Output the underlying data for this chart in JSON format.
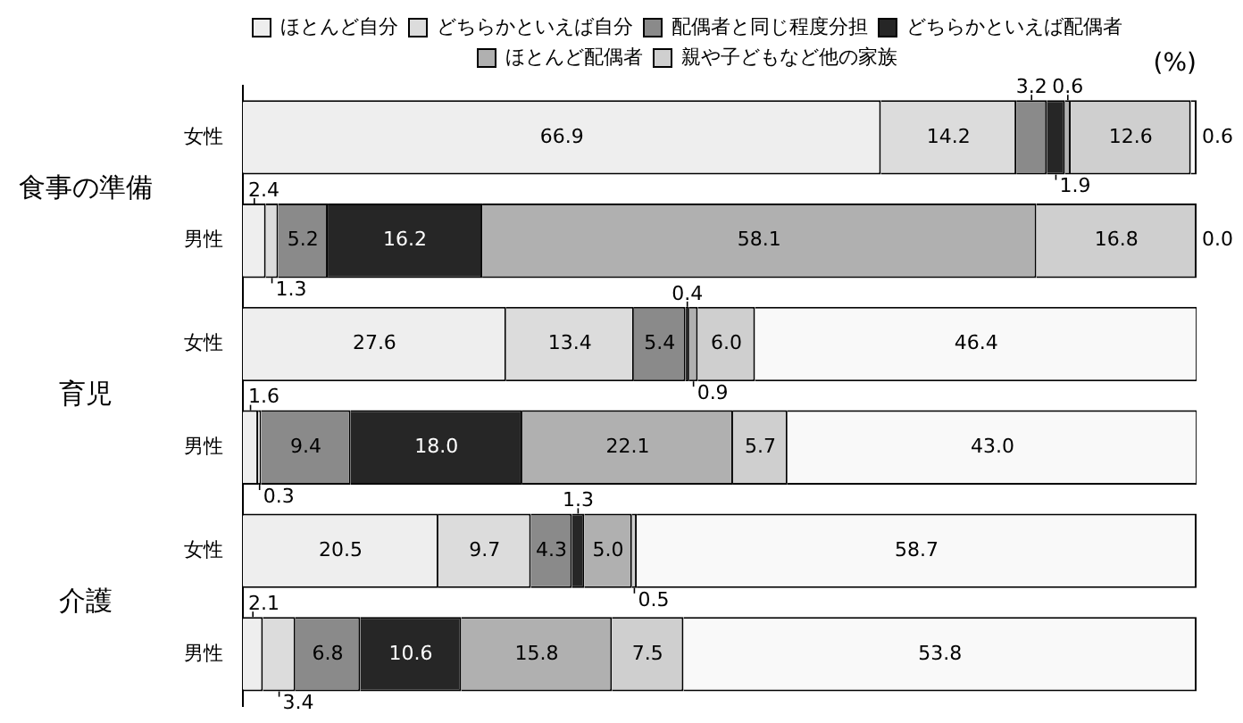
{
  "chart_data": {
    "type": "bar",
    "orientation": "horizontal",
    "stacked": true,
    "categories": [
      "女性",
      "男性",
      "女性",
      "男性",
      "女性",
      "男性"
    ],
    "series": [
      {
        "name": "ほとんど自分",
        "color": "#eeeeee",
        "values": [
          66.9,
          2.4,
          27.6,
          1.6,
          20.5,
          2.1
        ],
        "value_labels": [
          "66.9",
          "2.4",
          "27.6",
          "1.6",
          "20.5",
          "2.1"
        ]
      },
      {
        "name": "どちらかといえば自分",
        "color": "#dcdcdc",
        "values": [
          14.2,
          1.3,
          13.4,
          0.3,
          9.7,
          3.4
        ],
        "value_labels": [
          "14.2",
          "1.3",
          "13.4",
          "0.3",
          "9.7",
          "3.4"
        ]
      },
      {
        "name": "配偶者と同じ程度分担",
        "color": "#8a8a8a",
        "values": [
          3.2,
          5.2,
          5.4,
          9.4,
          4.3,
          6.8
        ],
        "value_labels": [
          "3.2",
          "5.2",
          "5.4",
          "9.4",
          "4.3",
          "6.8"
        ]
      },
      {
        "name": "どちらかといえば配偶者",
        "color": "#262626",
        "values": [
          1.9,
          16.2,
          0.4,
          18.0,
          1.3,
          10.6
        ],
        "value_labels": [
          "1.9",
          "16.2",
          "0.4",
          "18.0",
          "1.3",
          "10.6"
        ]
      },
      {
        "name": "ほとんど配偶者",
        "color": "#b0b0b0",
        "values": [
          0.6,
          58.1,
          0.9,
          22.1,
          5.0,
          15.8
        ],
        "value_labels": [
          "0.6",
          "58.1",
          "0.9",
          "22.1",
          "5.0",
          "15.8"
        ]
      },
      {
        "name": "親や子どもなど他の家族",
        "color": "#cfcfcf",
        "values": [
          12.6,
          16.8,
          6.0,
          5.7,
          0.5,
          7.5
        ],
        "value_labels": [
          "12.6",
          "16.8",
          "6.0",
          "5.7",
          "0.5",
          "7.5"
        ]
      },
      {
        "color": "#f9f9f9",
        "values": [
          0.6,
          0.0,
          46.4,
          43.0,
          58.7,
          53.8
        ],
        "value_labels": [
          "0.6",
          "0.0",
          "46.4",
          "43.0",
          "58.7",
          "53.8"
        ]
      }
    ],
    "xlim": [
      0,
      100
    ],
    "tick_labels": "y",
    "legend": "top",
    "annotations": [
      "食事の準備",
      "育児",
      "介護",
      "(%)"
    ]
  }
}
